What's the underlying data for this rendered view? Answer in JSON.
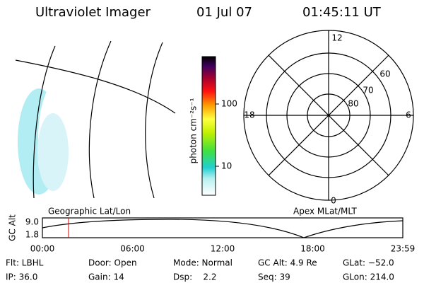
{
  "header": {
    "title": "Ultraviolet Imager",
    "date": "01 Jul 07",
    "time": "01:45:11 UT"
  },
  "colorbar": {
    "unit": "photon cm⁻²s⁻¹",
    "labels": [
      "100",
      "10"
    ]
  },
  "polar": {
    "mlt_labels": [
      "12",
      "18",
      "6",
      "0"
    ],
    "lat_labels": [
      "60",
      "70",
      "80"
    ]
  },
  "orbit": {
    "axis_label": "GC Alt",
    "y_labels": [
      "9.0",
      "1.8"
    ],
    "left_title": "Geographic Lat/Lon",
    "right_title": "Apex MLat/MLT",
    "times": [
      "00:00",
      "06:00",
      "12:00",
      "18:00",
      "23:59"
    ]
  },
  "info": {
    "rows": [
      [
        "Flt: LBHL",
        "Door: Open",
        "Mode: Normal",
        "GC Alt: 4.9 Re",
        "GLat: −52.0"
      ],
      [
        "IP: 36.0",
        "Gain: 14",
        "Dsp:    2.2",
        "Seq: 39",
        "GLon: 214.0"
      ]
    ]
  }
}
